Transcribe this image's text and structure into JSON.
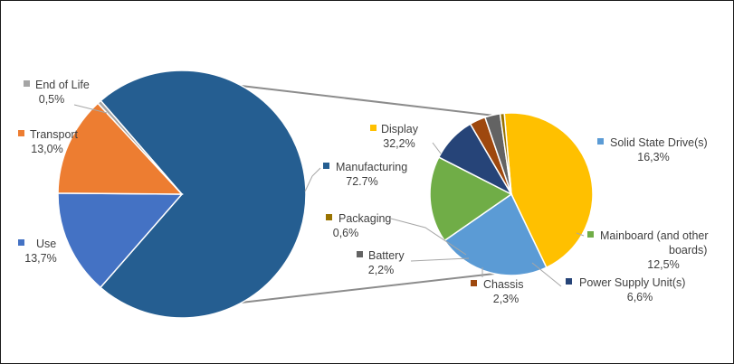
{
  "chart_data": {
    "type": "pie",
    "subtype": "pie-of-pie",
    "main": {
      "slices": [
        {
          "label": "Manufacturing",
          "value": "72.7%",
          "pct": 72.7,
          "color": "#255E91"
        },
        {
          "label": "Use",
          "value": "13,7%",
          "pct": 13.7,
          "color": "#4472C4"
        },
        {
          "label": "Transport",
          "value": "13,0%",
          "pct": 13.0,
          "color": "#ED7D31"
        },
        {
          "label": "End of Life",
          "value": "0,5%",
          "pct": 0.5,
          "color": "#A5A5A5"
        }
      ]
    },
    "breakdown": {
      "of": "Manufacturing",
      "slices": [
        {
          "label": "Display",
          "value": "32,2%",
          "pct": 32.2,
          "color": "#FFC000"
        },
        {
          "label": "Solid State Drive(s)",
          "value": "16,3%",
          "pct": 16.3,
          "color": "#5B9BD5"
        },
        {
          "label": "Mainboard (and other boards)",
          "value": "12,5%",
          "pct": 12.5,
          "color": "#70AD47"
        },
        {
          "label": "Power Supply Unit(s)",
          "value": "6,6%",
          "pct": 6.6,
          "color": "#264478"
        },
        {
          "label": "Chassis",
          "value": "2,3%",
          "pct": 2.3,
          "color": "#9E480E"
        },
        {
          "label": "Battery",
          "value": "2,2%",
          "pct": 2.2,
          "color": "#636363"
        },
        {
          "label": "Packaging",
          "value": "0,6%",
          "pct": 0.6,
          "color": "#997300"
        }
      ]
    },
    "legend_placement": "data labels with leader lines"
  }
}
